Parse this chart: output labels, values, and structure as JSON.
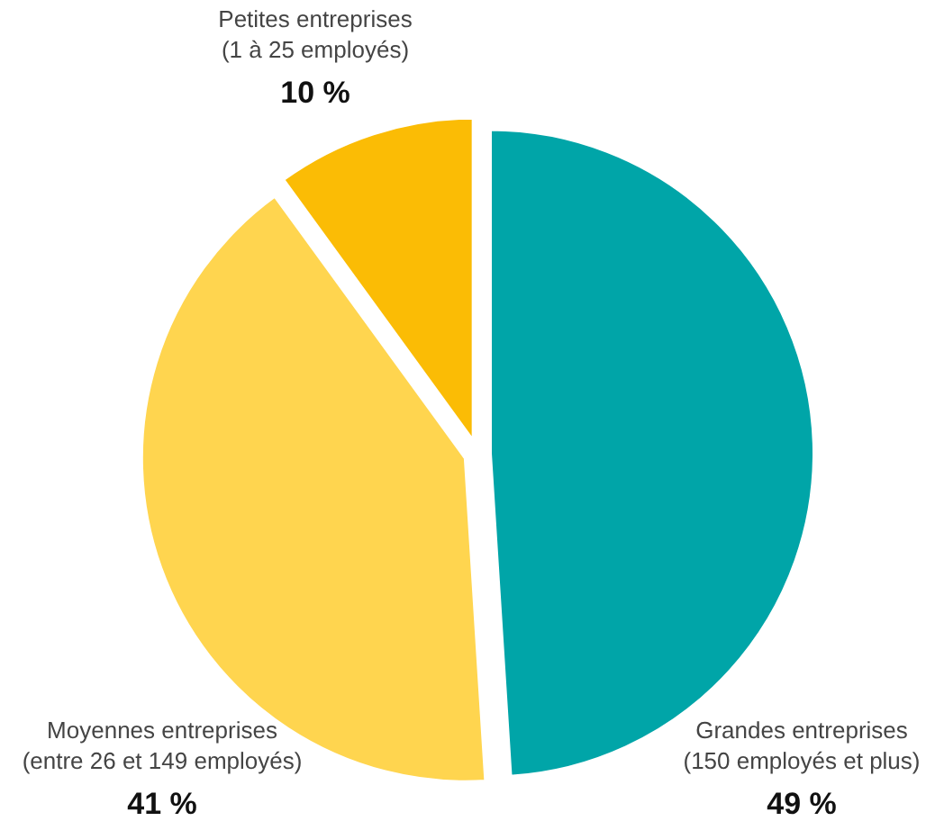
{
  "chart_data": {
    "type": "pie",
    "categories": [
      "Grandes entreprises\n(150 employés et plus)",
      "Moyennes entreprises\n(entre 26 et 149 employés)",
      "Petites entreprises\n(1 à  25 employés)"
    ],
    "values": [
      49,
      41,
      10
    ],
    "colors": [
      "#00a5a8",
      "#ffd54f",
      "#fbbc05"
    ],
    "value_labels": [
      "49 %",
      "41 %",
      "10 %"
    ]
  }
}
